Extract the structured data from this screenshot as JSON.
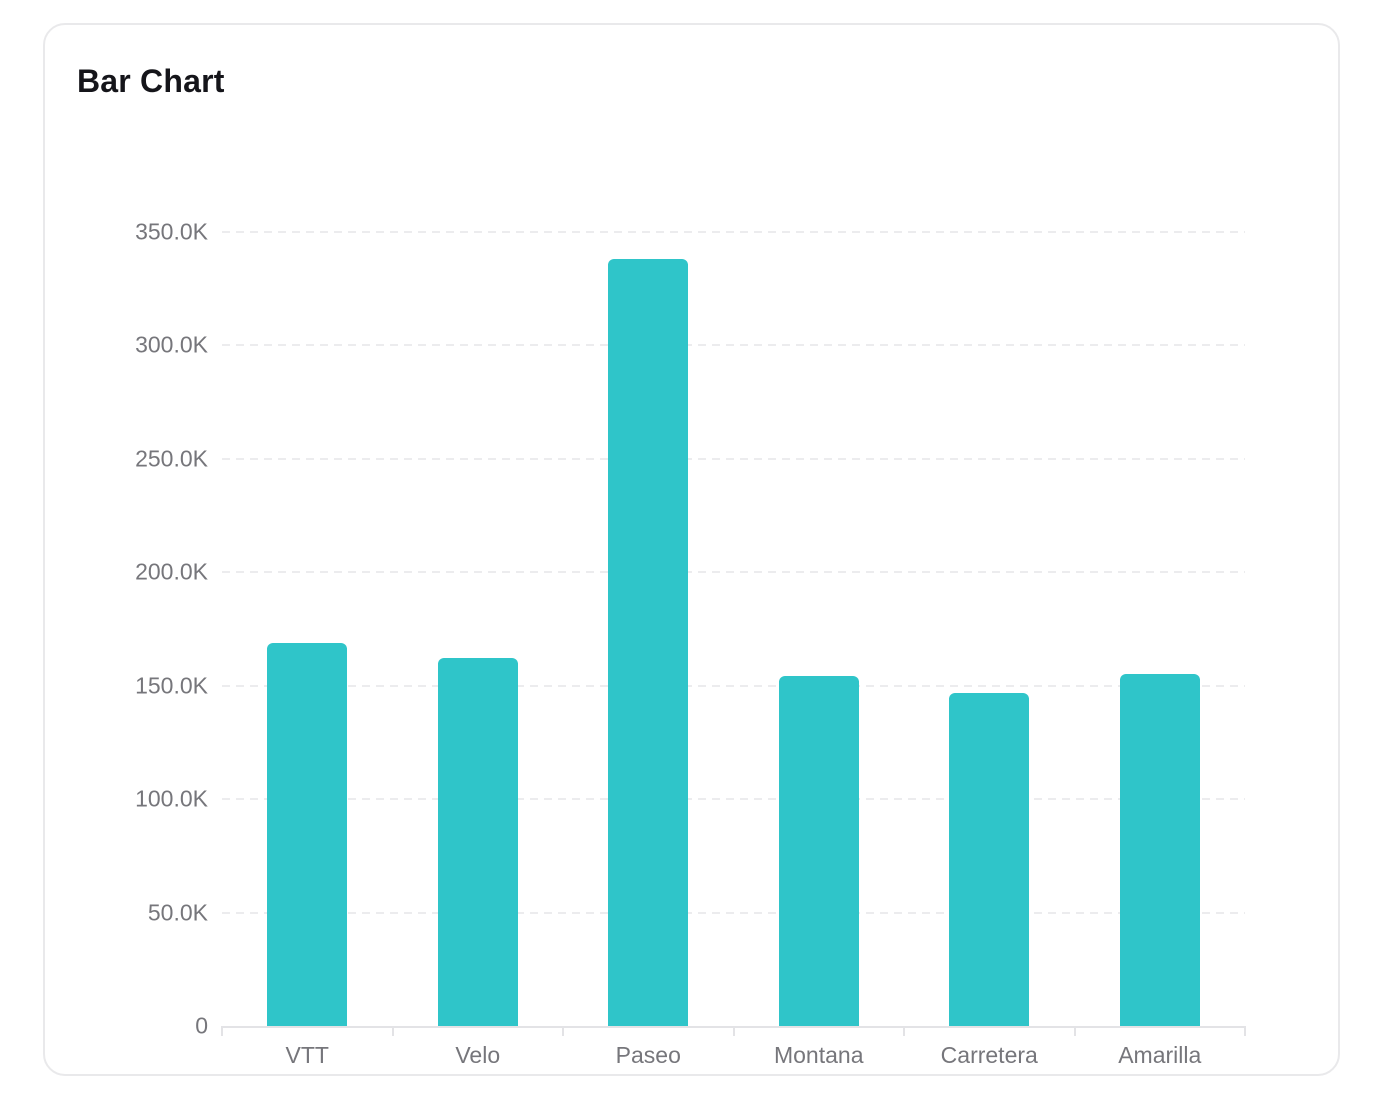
{
  "card": {
    "title": "Bar Chart"
  },
  "chart_data": {
    "type": "bar",
    "title": "Bar Chart",
    "categories": [
      "VTT",
      "Velo",
      "Paseo",
      "Montana",
      "Carretera",
      "Amarilla"
    ],
    "values": [
      168783,
      162425,
      338239,
      154168,
      146846,
      155315
    ],
    "xlabel": "",
    "ylabel": "",
    "ylim": [
      0,
      350000
    ],
    "y_ticks": [
      0,
      50000,
      100000,
      150000,
      200000,
      250000,
      300000,
      350000
    ],
    "y_tick_labels": [
      "0",
      "50.0K",
      "100.0K",
      "150.0K",
      "200.0K",
      "250.0K",
      "300.0K",
      "350.0K"
    ],
    "grid": "horizontal-dashed",
    "legend": "none",
    "bar_color": "#2fc5c9",
    "gridline_color": "#ececee",
    "axis_line_color": "#e3e3e6",
    "label_color": "#76767b",
    "title_color": "#15151a"
  }
}
